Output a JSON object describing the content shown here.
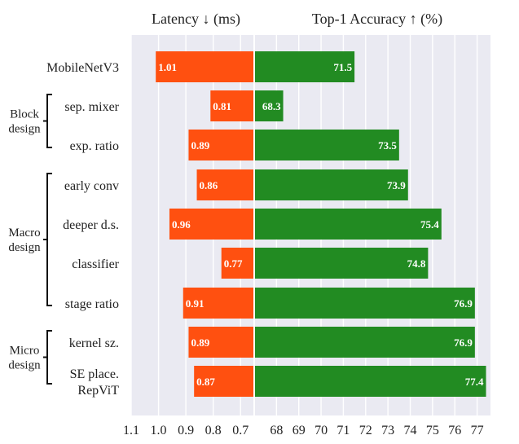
{
  "chart_data": {
    "type": "bar",
    "panels": [
      {
        "title": "Latency ↓ (ms)",
        "ticks": [
          "1.1",
          "1.0",
          "0.9",
          "0.8",
          "0.7"
        ],
        "tick_values": [
          1.1,
          1.0,
          0.9,
          0.8,
          0.7
        ],
        "xlim": [
          1.1,
          0.65
        ],
        "reversed": true,
        "color": "#ff5010"
      },
      {
        "title": "Top-1 Accuracy ↑ (%)",
        "ticks": [
          "68",
          "69",
          "70",
          "71",
          "72",
          "73",
          "74",
          "75",
          "76",
          "77"
        ],
        "tick_values": [
          68,
          69,
          70,
          71,
          72,
          73,
          74,
          75,
          76,
          77
        ],
        "xlim": [
          67.0,
          77.6
        ],
        "color": "#228b22"
      }
    ],
    "categories": [
      "MobileNetV3",
      "sep. mixer",
      "exp. ratio",
      "early conv",
      "deeper d.s.",
      "classifier",
      "stage ratio",
      "kernel sz.",
      "SE place.\nRepViT"
    ],
    "category_lines": [
      [
        "MobileNetV3"
      ],
      [
        "sep. mixer"
      ],
      [
        "exp. ratio"
      ],
      [
        "early conv"
      ],
      [
        "deeper d.s."
      ],
      [
        "classifier"
      ],
      [
        "stage ratio"
      ],
      [
        "kernel sz."
      ],
      [
        "SE place.",
        "RepViT"
      ]
    ],
    "latency": [
      1.01,
      0.81,
      0.89,
      0.86,
      0.96,
      0.77,
      0.91,
      0.89,
      0.87
    ],
    "latency_labels": [
      "1.01",
      "0.81",
      "0.89",
      "0.86",
      "0.96",
      "0.77",
      "0.91",
      "0.89",
      "0.87"
    ],
    "accuracy": [
      71.5,
      68.3,
      73.5,
      73.9,
      75.4,
      74.8,
      76.9,
      76.9,
      77.4
    ],
    "accuracy_labels": [
      "71.5",
      "68.3",
      "73.5",
      "73.9",
      "75.4",
      "74.8",
      "76.9",
      "76.9",
      "77.4"
    ],
    "groups": [
      {
        "lines": [
          "Block",
          "design"
        ],
        "rows": [
          1,
          2
        ]
      },
      {
        "lines": [
          "Macro",
          "design"
        ],
        "rows": [
          3,
          6
        ]
      },
      {
        "lines": [
          "Micro",
          "design"
        ],
        "rows": [
          7,
          8
        ]
      }
    ],
    "grid": true,
    "background": "#eaeaf2"
  }
}
